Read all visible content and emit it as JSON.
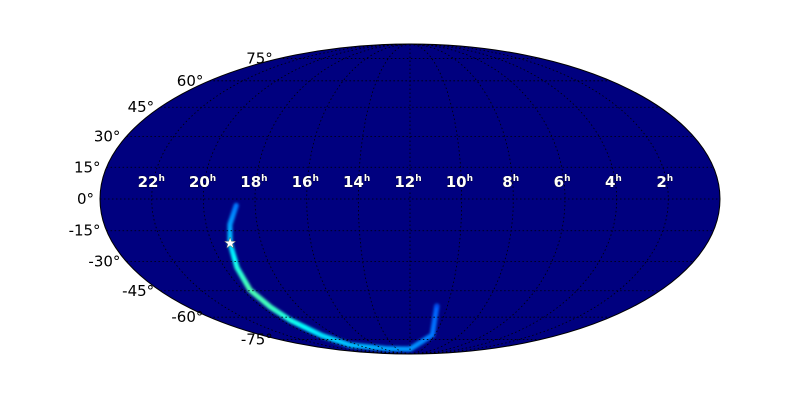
{
  "chart_data": {
    "type": "heatmap",
    "projection": "mollweide",
    "background_color": "#00007f",
    "colormap": "jet",
    "grid": true,
    "ra_ticks": [
      {
        "hours": 22,
        "label": "22",
        "sup": "h"
      },
      {
        "hours": 20,
        "label": "20",
        "sup": "h"
      },
      {
        "hours": 18,
        "label": "18",
        "sup": "h"
      },
      {
        "hours": 16,
        "label": "16",
        "sup": "h"
      },
      {
        "hours": 14,
        "label": "14",
        "sup": "h"
      },
      {
        "hours": 12,
        "label": "12",
        "sup": "h"
      },
      {
        "hours": 10,
        "label": "10",
        "sup": "h"
      },
      {
        "hours": 8,
        "label": "8",
        "sup": "h"
      },
      {
        "hours": 6,
        "label": "6",
        "sup": "h"
      },
      {
        "hours": 4,
        "label": "4",
        "sup": "h"
      },
      {
        "hours": 2,
        "label": "2",
        "sup": "h"
      }
    ],
    "dec_ticks": [
      {
        "deg": 75,
        "label": "75°"
      },
      {
        "deg": 60,
        "label": "60°"
      },
      {
        "deg": 45,
        "label": "45°"
      },
      {
        "deg": 30,
        "label": "30°"
      },
      {
        "deg": 15,
        "label": "15°"
      },
      {
        "deg": 0,
        "label": "0°"
      },
      {
        "deg": -15,
        "label": "-15°"
      },
      {
        "deg": -30,
        "label": "-30°"
      },
      {
        "deg": -45,
        "label": "-45°"
      },
      {
        "deg": -60,
        "label": "-60°"
      },
      {
        "deg": -75,
        "label": "-75°"
      }
    ],
    "probability_arc": [
      {
        "ra_deg": 281,
        "dec": -3,
        "intensity": 0.15
      },
      {
        "ra_deg": 286,
        "dec": -12,
        "intensity": 0.3
      },
      {
        "ra_deg": 289,
        "dec": -21,
        "intensity": 0.5
      },
      {
        "ra_deg": 292,
        "dec": -33,
        "intensity": 0.8
      },
      {
        "ra_deg": 294.7,
        "dec": -44.6,
        "intensity": 1.0
      },
      {
        "ra_deg": 293,
        "dec": -54,
        "intensity": 0.95
      },
      {
        "ra_deg": 291.5,
        "dec": -61.8,
        "intensity": 0.8
      },
      {
        "ra_deg": 288,
        "dec": -72,
        "intensity": 0.6
      },
      {
        "ra_deg": 284,
        "dec": -79.7,
        "intensity": 0.45
      },
      {
        "ra_deg": 230,
        "dec": -83,
        "intensity": 0.35
      },
      {
        "ra_deg": 180,
        "dec": -83.3,
        "intensity": 0.3
      },
      {
        "ra_deg": 153,
        "dec": -71.7,
        "intensity": 0.18
      },
      {
        "ra_deg": 158.5,
        "dec": -52.9,
        "intensity": 0.08
      }
    ],
    "marker": {
      "type": "star",
      "ra_deg": 289,
      "dec": -21,
      "color": "#ffffff"
    }
  }
}
